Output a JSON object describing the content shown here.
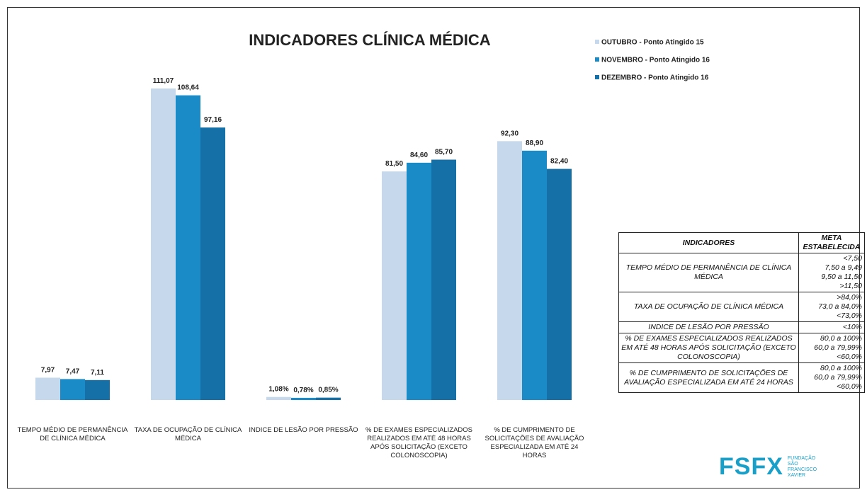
{
  "chart_data": {
    "type": "bar",
    "title": "INDICADORES CLÍNICA MÉDICA",
    "categories": [
      "TEMPO MÉDIO DE PERMANÊNCIA DE CLÍNICA MÉDICA",
      "TAXA DE OCUPAÇÃO DE CLÍNICA MÉDICA",
      "INDICE DE LESÃO POR PRESSÃO",
      "% DE EXAMES ESPECIALIZADOS REALIZADOS EM ATÉ 48 HORAS APÓS SOLICITAÇÃO (EXCETO COLONOSCOPIA)",
      "% DE CUMPRIMENTO DE SOLICITAÇÕES DE AVALIAÇÃO ESPECIALIZADA EM ATÉ 24 HORAS"
    ],
    "series": [
      {
        "name": "OUTUBRO - Ponto Atingido 15",
        "color": "#c6d9ec",
        "values": [
          7.97,
          111.07,
          1.08,
          81.5,
          92.3
        ],
        "value_labels": [
          "7,97",
          "111,07",
          "1,08%",
          "81,50",
          "92,30"
        ]
      },
      {
        "name": "NOVEMBRO - Ponto Atingido 16",
        "color": "#1b8bc8",
        "values": [
          7.47,
          108.64,
          0.78,
          84.6,
          88.9
        ],
        "value_labels": [
          "7,47",
          "108,64",
          "0,78%",
          "84,60",
          "88,90"
        ]
      },
      {
        "name": "DEZEMBRO - Ponto Atingido 16",
        "color": "#1670a8",
        "values": [
          7.11,
          97.16,
          0.85,
          85.7,
          82.4
        ],
        "value_labels": [
          "7,11",
          "97,16",
          "0,85%",
          "85,70",
          "82,40"
        ]
      }
    ]
  },
  "table": {
    "header": [
      "INDICADORES",
      "META ESTABELECIDA"
    ],
    "rows": [
      [
        "TEMPO MÉDIO DE PERMANÊNCIA DE CLÍNICA MÉDICA",
        [
          "<7,50",
          "7,50 a 9,49",
          "9,50 a 11,50",
          ">11,50"
        ]
      ],
      [
        "TAXA DE OCUPAÇÃO DE CLÍNICA MÉDICA",
        [
          ">84,0%",
          "73,0 a 84,0%",
          "<73,0%"
        ]
      ],
      [
        "INDICE DE LESÃO POR PRESSÃO",
        [
          "<10%"
        ]
      ],
      [
        "% DE EXAMES ESPECIALIZADOS REALIZADOS EM ATÉ 48 HORAS APÓS SOLICITAÇÃO (EXCETO COLONOSCOPIA)",
        [
          "80,0 a 100%",
          "60,0 a 79,99%",
          "<60,0%"
        ]
      ],
      [
        "% DE CUMPRIMENTO DE SOLICITAÇÕES DE AVALIAÇÃO ESPECIALIZADA EM ATÉ 24 HORAS",
        [
          "80,0 a 100%",
          "60,0 a 79,99%",
          "<60,0%"
        ]
      ]
    ]
  },
  "logo": {
    "mark": "FSFX",
    "text": "FUNDAÇÃO SÃO FRANCISCO XAVIER"
  }
}
